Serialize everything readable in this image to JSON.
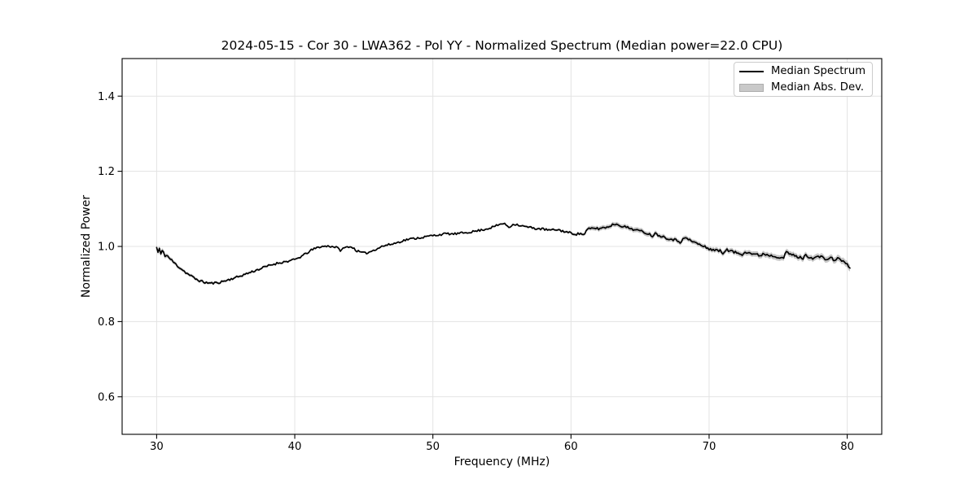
{
  "legend": {
    "position": "upper right",
    "entries": [
      {
        "label": "Median Spectrum",
        "type": "line"
      },
      {
        "label": "Median Abs. Dev.",
        "type": "patch"
      }
    ]
  },
  "colors": {
    "line": "#000000",
    "band": "#c6c6c6",
    "legend_patch_fill": "#c9c9c9",
    "legend_patch_edge": "#adadad",
    "legend_border": "#cccccc",
    "grid": "#e3e3e3",
    "spine": "#000000",
    "text": "#000000",
    "background": "#ffffff"
  },
  "chart_data": {
    "type": "line",
    "title": "2024-05-15 - Cor 30 - LWA362 - Pol YY - Normalized Spectrum (Median power=22.0 CPU)",
    "xlabel": "Frequency (MHz)",
    "ylabel": "Normalized Power",
    "xlim": [
      27.5,
      82.5
    ],
    "ylim": [
      0.5,
      1.5
    ],
    "xticks": [
      30,
      40,
      50,
      60,
      70,
      80
    ],
    "xticklabels": [
      "30",
      "40",
      "50",
      "60",
      "70",
      "80"
    ],
    "yticks": [
      0.6,
      0.8,
      1.0,
      1.2,
      1.4
    ],
    "yticklabels": [
      "0.6",
      "0.8",
      "1.0",
      "1.2",
      "1.4"
    ],
    "grid": true,
    "legend_position": "upper right",
    "series": [
      {
        "name": "Median Spectrum",
        "x": [
          30.0,
          30.1,
          30.2,
          30.3,
          30.45,
          30.6,
          30.8,
          31.0,
          31.3,
          31.6,
          31.9,
          32.2,
          32.5,
          32.8,
          33.1,
          33.4,
          33.7,
          34.0,
          34.3,
          34.6,
          34.9,
          35.2,
          35.5,
          35.8,
          36.1,
          36.4,
          36.7,
          37.0,
          37.3,
          37.6,
          37.9,
          38.2,
          38.5,
          38.8,
          39.1,
          39.4,
          39.7,
          40.0,
          40.3,
          40.6,
          40.9,
          41.2,
          41.5,
          41.8,
          42.1,
          42.4,
          42.7,
          43.0,
          43.3,
          43.6,
          43.9,
          44.2,
          44.5,
          44.8,
          45.1,
          45.4,
          45.7,
          46.0,
          46.3,
          46.6,
          47.0,
          47.4,
          47.8,
          48.2,
          48.6,
          49.0,
          49.4,
          49.8,
          50.2,
          50.6,
          51.0,
          51.4,
          51.8,
          52.2,
          52.6,
          53.0,
          53.4,
          53.8,
          54.2,
          54.6,
          55.0,
          55.3,
          55.5,
          55.7,
          55.9,
          56.2,
          56.5,
          56.8,
          57.1,
          57.4,
          57.7,
          58.0,
          58.3,
          58.6,
          58.9,
          59.2,
          59.5,
          59.8,
          60.1,
          60.4,
          60.7,
          61.0,
          61.15,
          61.4,
          61.7,
          62.0,
          62.3,
          62.6,
          62.9,
          63.2,
          63.5,
          63.8,
          64.1,
          64.4,
          64.7,
          65.0,
          65.3,
          65.6,
          65.9,
          66.05,
          66.3,
          66.6,
          66.9,
          67.2,
          67.5,
          67.8,
          67.95,
          68.1,
          68.4,
          68.7,
          69.0,
          69.3,
          69.6,
          69.9,
          70.2,
          70.5,
          70.8,
          71.0,
          71.2,
          71.5,
          71.8,
          72.1,
          72.4,
          72.55,
          72.8,
          73.1,
          73.4,
          73.7,
          73.95,
          74.2,
          74.5,
          74.8,
          75.1,
          75.4,
          75.6,
          75.9,
          76.2,
          76.5,
          76.8,
          77.0,
          77.3,
          77.6,
          77.9,
          78.2,
          78.5,
          78.8,
          79.1,
          79.4,
          79.7,
          79.9,
          80.05,
          80.2
        ],
        "y": [
          0.997,
          0.984,
          0.994,
          0.979,
          0.989,
          0.977,
          0.974,
          0.966,
          0.955,
          0.946,
          0.937,
          0.928,
          0.921,
          0.914,
          0.909,
          0.905,
          0.903,
          0.902,
          0.903,
          0.905,
          0.908,
          0.911,
          0.915,
          0.918,
          0.922,
          0.926,
          0.93,
          0.934,
          0.938,
          0.942,
          0.946,
          0.95,
          0.953,
          0.956,
          0.958,
          0.96,
          0.962,
          0.965,
          0.97,
          0.976,
          0.983,
          0.99,
          0.995,
          0.999,
          1.0,
          1.001,
          1.0,
          0.998,
          0.99,
          0.996,
          1.0,
          0.997,
          0.988,
          0.984,
          0.982,
          0.985,
          0.99,
          0.995,
          1.0,
          1.003,
          1.006,
          1.01,
          1.015,
          1.019,
          1.021,
          1.023,
          1.025,
          1.028,
          1.03,
          1.032,
          1.034,
          1.033,
          1.034,
          1.036,
          1.038,
          1.04,
          1.043,
          1.046,
          1.05,
          1.055,
          1.061,
          1.058,
          1.051,
          1.056,
          1.06,
          1.057,
          1.054,
          1.052,
          1.05,
          1.048,
          1.047,
          1.046,
          1.044,
          1.043,
          1.045,
          1.043,
          1.04,
          1.037,
          1.035,
          1.033,
          1.034,
          1.032,
          1.045,
          1.047,
          1.049,
          1.047,
          1.05,
          1.051,
          1.056,
          1.06,
          1.057,
          1.053,
          1.05,
          1.047,
          1.044,
          1.041,
          1.038,
          1.034,
          1.028,
          1.035,
          1.031,
          1.027,
          1.023,
          1.02,
          1.018,
          1.014,
          1.01,
          1.024,
          1.02,
          1.015,
          1.01,
          1.005,
          1.0,
          0.995,
          0.992,
          0.99,
          0.988,
          0.981,
          0.992,
          0.988,
          0.985,
          0.982,
          0.979,
          0.987,
          0.984,
          0.981,
          0.978,
          0.976,
          0.981,
          0.978,
          0.976,
          0.974,
          0.972,
          0.97,
          0.985,
          0.979,
          0.975,
          0.971,
          0.969,
          0.976,
          0.972,
          0.968,
          0.974,
          0.97,
          0.966,
          0.969,
          0.964,
          0.968,
          0.961,
          0.955,
          0.949,
          0.939
        ]
      }
    ],
    "band": {
      "name": "Median Abs. Dev.",
      "x": [
        30,
        31,
        32,
        34,
        36,
        38,
        40,
        44,
        48,
        52,
        56,
        59,
        61,
        61.5,
        63,
        65,
        67,
        69,
        71,
        73,
        75,
        77,
        79,
        80.2
      ],
      "halfwidth": [
        0.007,
        0.005,
        0.004,
        0.0035,
        0.003,
        0.003,
        0.0025,
        0.0022,
        0.0022,
        0.0022,
        0.0025,
        0.003,
        0.004,
        0.006,
        0.006,
        0.0065,
        0.006,
        0.006,
        0.0065,
        0.007,
        0.0075,
        0.0075,
        0.008,
        0.009
      ]
    },
    "noise": {
      "seed": 11,
      "step": 0.1,
      "amp_x": [
        30,
        31,
        33,
        50,
        60,
        65,
        70,
        80.2
      ],
      "amp": [
        0.0055,
        0.004,
        0.003,
        0.0028,
        0.003,
        0.0032,
        0.0035,
        0.0038
      ]
    }
  }
}
